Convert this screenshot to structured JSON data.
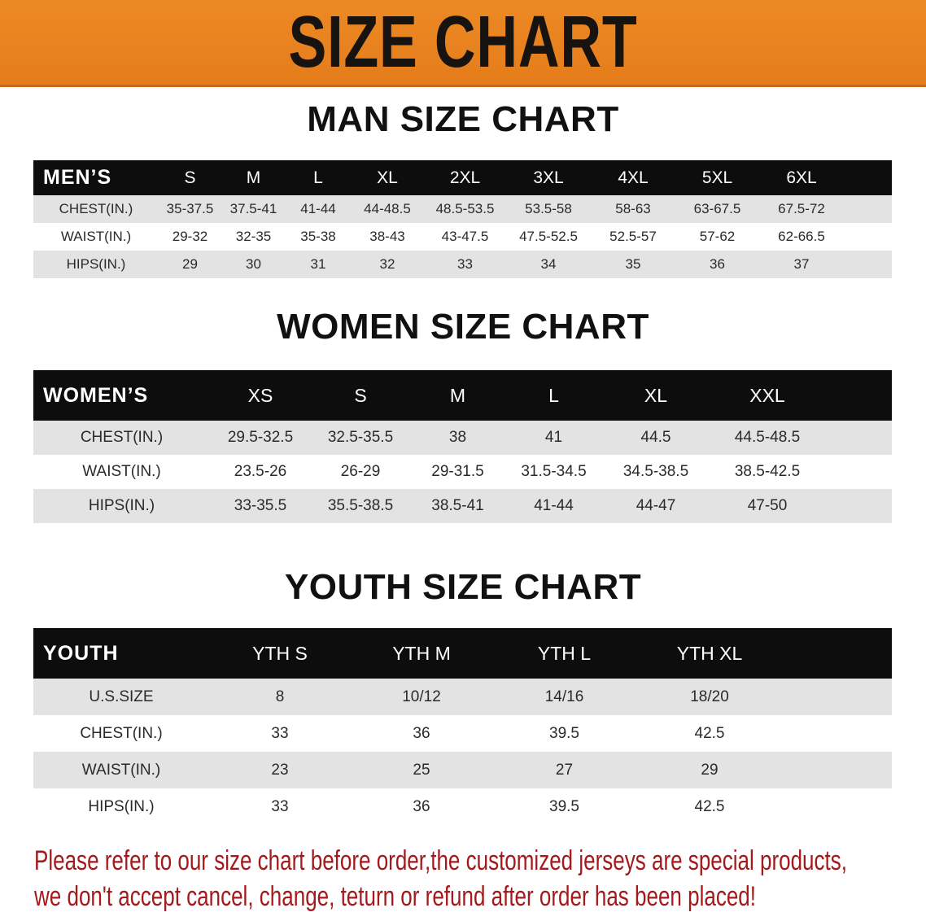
{
  "banner": {
    "title": "SIZE CHART",
    "color": "#e8831f"
  },
  "men": {
    "title": "MAN SIZE CHART",
    "header_label": "MEN’S",
    "sizes": [
      "S",
      "M",
      "L",
      "XL",
      "2XL",
      "3XL",
      "4XL",
      "5XL",
      "6XL"
    ],
    "rows": [
      {
        "label": "CHEST(IN.)",
        "values": [
          "35-37.5",
          "37.5-41",
          "41-44",
          "44-48.5",
          "48.5-53.5",
          "53.5-58",
          "58-63",
          "63-67.5",
          "67.5-72"
        ]
      },
      {
        "label": "WAIST(IN.)",
        "values": [
          "29-32",
          "32-35",
          "35-38",
          "38-43",
          "43-47.5",
          "47.5-52.5",
          "52.5-57",
          "57-62",
          "62-66.5"
        ]
      },
      {
        "label": "HIPS(IN.)",
        "values": [
          "29",
          "30",
          "31",
          "32",
          "33",
          "34",
          "35",
          "36",
          "37"
        ]
      }
    ]
  },
  "women": {
    "title": "WOMEN SIZE CHART",
    "header_label": "WOMEN’S",
    "sizes": [
      "XS",
      "S",
      "M",
      "L",
      "XL",
      "XXL"
    ],
    "rows": [
      {
        "label": "CHEST(IN.)",
        "values": [
          "29.5-32.5",
          "32.5-35.5",
          "38",
          "41",
          "44.5",
          "44.5-48.5"
        ]
      },
      {
        "label": "WAIST(IN.)",
        "values": [
          "23.5-26",
          "26-29",
          "29-31.5",
          "31.5-34.5",
          "34.5-38.5",
          "38.5-42.5"
        ]
      },
      {
        "label": "HIPS(IN.)",
        "values": [
          "33-35.5",
          "35.5-38.5",
          "38.5-41",
          "41-44",
          "44-47",
          "47-50"
        ]
      }
    ]
  },
  "youth": {
    "title": "YOUTH SIZE CHART",
    "header_label": "YOUTH",
    "sizes": [
      "YTH S",
      "YTH M",
      "YTH L",
      "YTH XL"
    ],
    "rows": [
      {
        "label": "U.S.SIZE",
        "values": [
          "8",
          "10/12",
          "14/16",
          "18/20"
        ]
      },
      {
        "label": "CHEST(IN.)",
        "values": [
          "33",
          "36",
          "39.5",
          "42.5"
        ]
      },
      {
        "label": "WAIST(IN.)",
        "values": [
          "23",
          "25",
          "27",
          "29"
        ]
      },
      {
        "label": "HIPS(IN.)",
        "values": [
          "33",
          "36",
          "39.5",
          "42.5"
        ]
      }
    ]
  },
  "notice": {
    "line1": "Please refer to our size chart before order,the customized jerseys are special products,",
    "line2": "we don't accept cancel, change, teturn or refund after order has been placed!",
    "color": "#a3191c"
  }
}
